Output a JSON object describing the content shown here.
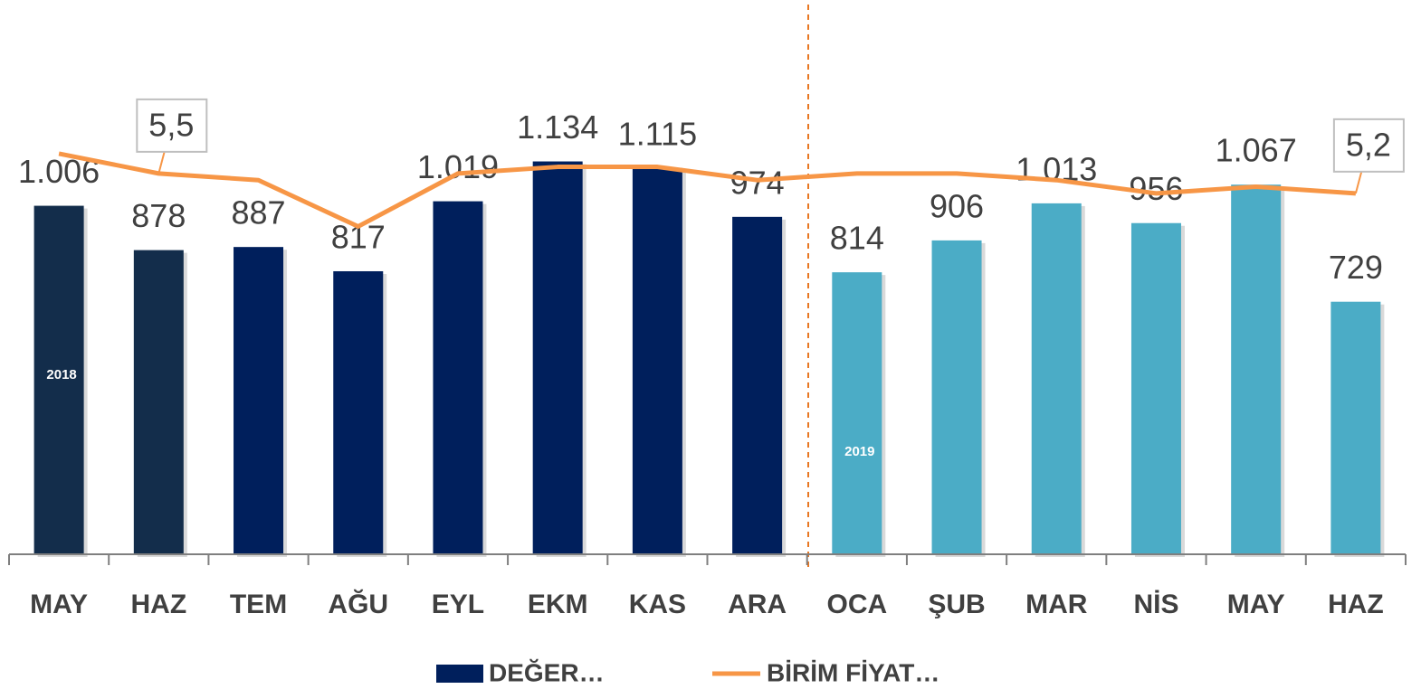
{
  "chart_data": {
    "type": "bar_line",
    "categories": [
      "MAY",
      "HAZ",
      "TEM",
      "AĞU",
      "EYL",
      "EKM",
      "KAS",
      "ARA",
      "OCA",
      "ŞUB",
      "MAR",
      "NİS",
      "MAY",
      "HAZ"
    ],
    "series": [
      {
        "name": "DEĞER…",
        "type": "bar",
        "color": "#001f5c",
        "colors": [
          "#132d4b",
          "#132d4b",
          "#001f5c",
          "#001f5c",
          "#001f5c",
          "#001f5c",
          "#001f5c",
          "#001f5c",
          "#4bacc6",
          "#4bacc6",
          "#4bacc6",
          "#4bacc6",
          "#4bacc6",
          "#4bacc6"
        ],
        "values": [
          1006,
          878,
          887,
          817,
          1019,
          1134,
          1115,
          974,
          814,
          906,
          1013,
          956,
          1067,
          729
        ],
        "value_labels": [
          "1.006",
          "878",
          "887",
          "817",
          "1.019",
          "1.134",
          "1.115",
          "974",
          "814",
          "906",
          "1.013",
          "956",
          "1.067",
          "729"
        ]
      },
      {
        "name": "BİRİM FİYAT…",
        "type": "line",
        "axis": "y2",
        "color": "#f79646",
        "values": [
          5.8,
          5.5,
          5.4,
          4.7,
          5.5,
          5.6,
          5.6,
          5.4,
          5.5,
          5.5,
          5.4,
          5.2,
          5.3,
          5.2
        ],
        "value_labels": [
          null,
          "5,5",
          null,
          null,
          null,
          null,
          null,
          null,
          null,
          null,
          null,
          null,
          null,
          "5,2"
        ]
      }
    ],
    "annotations": [
      "2018",
      "2019"
    ],
    "ylim": [
      0,
      1600
    ],
    "y2lim": [
      -0.25,
      8.12
    ],
    "legend": "bottom"
  }
}
